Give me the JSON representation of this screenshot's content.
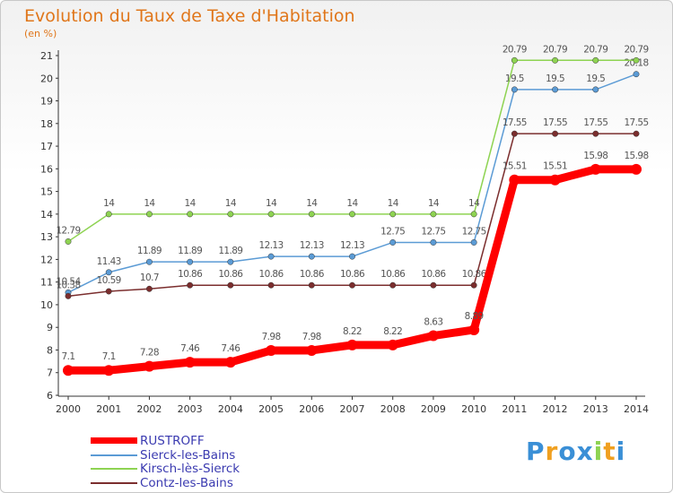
{
  "header": {
    "title": "Evolution du Taux de Taxe d'Habitation",
    "unit": "(en %)"
  },
  "chart_data": {
    "type": "line",
    "title": "Evolution du Taux de Taxe d'Habitation",
    "ylabel": "(en %)",
    "xlabel": "",
    "x": [
      "2000",
      "2001",
      "2002",
      "2003",
      "2004",
      "2005",
      "2006",
      "2007",
      "2008",
      "2009",
      "2010",
      "2011",
      "2012",
      "2013",
      "2014"
    ],
    "ylim": [
      6,
      21
    ],
    "yticks": [
      6,
      7,
      8,
      9,
      10,
      11,
      12,
      13,
      14,
      15,
      16,
      17,
      18,
      19,
      20,
      21
    ],
    "grid": false,
    "legend_position": "bottom-left",
    "series": [
      {
        "name": "RUSTROFF",
        "color": "#ff0000",
        "emphasis": true,
        "values": [
          7.1,
          7.1,
          7.28,
          7.46,
          7.46,
          7.98,
          7.98,
          8.22,
          8.22,
          8.63,
          8.89,
          15.51,
          15.51,
          15.98,
          15.98
        ],
        "labels": [
          "7.1",
          "7.1",
          "7.28",
          "7.46",
          "7.46",
          "7.98",
          "7.98",
          "8.22",
          "8.22",
          "8.63",
          "8.89",
          "15.51",
          "15.51",
          "15.98",
          "15.98"
        ]
      },
      {
        "name": "Sierck-les-Bains",
        "color": "#5b9bd5",
        "values": [
          10.54,
          11.43,
          11.89,
          11.89,
          11.89,
          12.13,
          12.13,
          12.13,
          12.75,
          12.75,
          12.75,
          19.5,
          19.5,
          19.5,
          20.18
        ],
        "labels": [
          "10.54",
          "11.43",
          "11.89",
          "11.89",
          "11.89",
          "12.13",
          "12.13",
          "12.13",
          "12.75",
          "12.75",
          "12.75",
          "19.5",
          "19.5",
          "19.5",
          "20.18"
        ]
      },
      {
        "name": "Kirsch-lès-Sierck",
        "color": "#8ed352",
        "values": [
          12.79,
          14,
          14,
          14,
          14,
          14,
          14,
          14,
          14,
          14,
          14,
          20.79,
          20.79,
          20.79,
          20.79
        ],
        "labels": [
          "12.79",
          "14",
          "14",
          "14",
          "14",
          "14",
          "14",
          "14",
          "14",
          "14",
          "14",
          "20.79",
          "20.79",
          "20.79",
          "20.79"
        ]
      },
      {
        "name": "Contz-les-Bains",
        "color": "#7b2e2e",
        "values": [
          10.38,
          10.59,
          10.7,
          10.86,
          10.86,
          10.86,
          10.86,
          10.86,
          10.86,
          10.86,
          10.86,
          17.55,
          17.55,
          17.55,
          17.55
        ],
        "labels": [
          "10.38",
          "10.59",
          "10.7",
          "10.86",
          "10.86",
          "10.86",
          "10.86",
          "10.86",
          "10.86",
          "10.86",
          "10.86",
          "17.55",
          "17.55",
          "17.55",
          "17.55"
        ]
      }
    ]
  },
  "legend": [
    {
      "label": "RUSTROFF",
      "color": "#ff0000"
    },
    {
      "label": "Sierck-les-Bains",
      "color": "#5b9bd5"
    },
    {
      "label": "Kirsch-lès-Sierck",
      "color": "#8ed352"
    },
    {
      "label": "Contz-les-Bains",
      "color": "#7b2e2e"
    }
  ],
  "brand": {
    "letters": [
      "P",
      "r",
      "o",
      "x",
      "i",
      "t",
      "i"
    ],
    "colors": [
      "#3a8fd6",
      "#f0a020",
      "#3a8fd6",
      "#3a8fd6",
      "#8ed352",
      "#f0a020",
      "#3a8fd6"
    ]
  }
}
